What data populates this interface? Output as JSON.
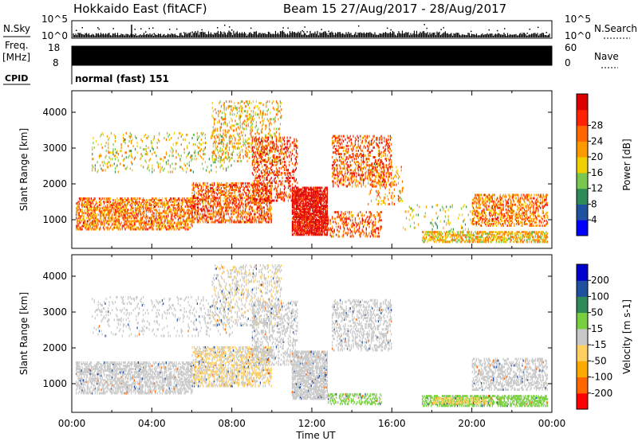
{
  "header": {
    "title": "Hokkaido East (fitACF)",
    "beam_info": "Beam 15  27/Aug/2017 - 28/Aug/2017"
  },
  "left_labels": {
    "nsky": "N.Sky",
    "freq": "Freq.",
    "freq_unit": "[MHz]",
    "cpid": "CPID"
  },
  "right_labels": {
    "nsearch": "N.Search",
    "nave": "Nave"
  },
  "strip_ticks": {
    "noise_left_top": "10^5",
    "noise_left_bottom": "10^0",
    "noise_right_top": "10^5",
    "noise_right_bottom": "10^0",
    "freq_left_top": "18",
    "freq_left_bottom": "8",
    "nave_right_top": "60",
    "nave_right_bottom": "0"
  },
  "cpid_text": "normal (fast) 151",
  "colors": {
    "power": [
      "#0000ff",
      "#2050a0",
      "#2e8b57",
      "#78c850",
      "#f0d000",
      "#ff9900",
      "#ff6600",
      "#ff2200",
      "#dd0000"
    ],
    "velocity": [
      "#ff0000",
      "#ff6600",
      "#ffaa00",
      "#ffd060",
      "#c8c8c8",
      "#78d040",
      "#2e8b57",
      "#2050a0",
      "#0000cc"
    ]
  },
  "chart_data": [
    {
      "type": "heatmap",
      "name": "power",
      "xlabel": "",
      "ylabel": "Slant Range [km]",
      "x_ticks": [
        "00:00",
        "04:00",
        "08:00",
        "12:00",
        "16:00",
        "20:00",
        "00:00"
      ],
      "xlim": [
        0,
        24
      ],
      "ylim": [
        200,
        4600
      ],
      "y_ticks": [
        1000,
        2000,
        3000,
        4000
      ],
      "colorbar": {
        "label": "Power [dB]",
        "ticks": [
          4,
          8,
          12,
          16,
          20,
          24,
          28
        ],
        "range": [
          0,
          32
        ]
      },
      "regions": [
        {
          "t": [
            0.2,
            6.0
          ],
          "r": [
            700,
            1600
          ],
          "value": 22,
          "density": 0.55
        },
        {
          "t": [
            6.0,
            10.0
          ],
          "r": [
            900,
            2000
          ],
          "value": 24,
          "density": 0.5
        },
        {
          "t": [
            1.0,
            8.0
          ],
          "r": [
            2300,
            3400
          ],
          "value": 16,
          "density": 0.12
        },
        {
          "t": [
            7.0,
            10.5
          ],
          "r": [
            2600,
            4300
          ],
          "value": 18,
          "density": 0.22
        },
        {
          "t": [
            9.0,
            11.3
          ],
          "r": [
            1500,
            3300
          ],
          "value": 26,
          "density": 0.3
        },
        {
          "t": [
            11.0,
            12.8
          ],
          "r": [
            550,
            1900
          ],
          "value": 30,
          "density": 0.85
        },
        {
          "t": [
            12.8,
            15.5
          ],
          "r": [
            500,
            1200
          ],
          "value": 24,
          "density": 0.3
        },
        {
          "t": [
            13.0,
            16.0
          ],
          "r": [
            1900,
            3300
          ],
          "value": 24,
          "density": 0.35
        },
        {
          "t": [
            14.8,
            16.6
          ],
          "r": [
            1400,
            2500
          ],
          "value": 20,
          "density": 0.15
        },
        {
          "t": [
            17.5,
            23.8
          ],
          "r": [
            350,
            650
          ],
          "value": 18,
          "density": 0.6
        },
        {
          "t": [
            20.0,
            23.8
          ],
          "r": [
            800,
            1700
          ],
          "value": 22,
          "density": 0.45
        },
        {
          "t": [
            16.5,
            20.0
          ],
          "r": [
            650,
            1400
          ],
          "value": 14,
          "density": 0.06
        }
      ]
    },
    {
      "type": "heatmap",
      "name": "velocity",
      "xlabel": "Time UT",
      "ylabel": "Slant Range [km]",
      "x_ticks": [
        "00:00",
        "04:00",
        "08:00",
        "12:00",
        "16:00",
        "20:00",
        "00:00"
      ],
      "xlim": [
        0,
        24
      ],
      "ylim": [
        200,
        4600
      ],
      "y_ticks": [
        1000,
        2000,
        3000,
        4000
      ],
      "colorbar": {
        "label": "Velocity [m s-1]",
        "ticks": [
          -200,
          -100,
          -50,
          -15,
          15,
          50,
          100,
          200
        ],
        "range": [
          -250,
          250
        ]
      },
      "regions": [
        {
          "t": [
            0.2,
            6.0
          ],
          "r": [
            700,
            1600
          ],
          "value": 0,
          "density": 0.55
        },
        {
          "t": [
            6.0,
            10.0
          ],
          "r": [
            900,
            2000
          ],
          "value": -30,
          "density": 0.5
        },
        {
          "t": [
            1.0,
            8.0
          ],
          "r": [
            2300,
            3400
          ],
          "value": 0,
          "density": 0.12
        },
        {
          "t": [
            7.0,
            10.5
          ],
          "r": [
            2600,
            4300
          ],
          "value": -20,
          "density": 0.22
        },
        {
          "t": [
            9.0,
            11.3
          ],
          "r": [
            1500,
            3300
          ],
          "value": 0,
          "density": 0.3
        },
        {
          "t": [
            11.0,
            12.8
          ],
          "r": [
            550,
            1900
          ],
          "value": 0,
          "density": 0.7
        },
        {
          "t": [
            12.8,
            15.5
          ],
          "r": [
            400,
            700
          ],
          "value": 40,
          "density": 0.45
        },
        {
          "t": [
            13.0,
            16.0
          ],
          "r": [
            1900,
            3300
          ],
          "value": 0,
          "density": 0.35
        },
        {
          "t": [
            17.5,
            23.8
          ],
          "r": [
            350,
            650
          ],
          "value": 45,
          "density": 0.65
        },
        {
          "t": [
            18.0,
            21.0
          ],
          "r": [
            420,
            560
          ],
          "value": -60,
          "density": 0.5
        },
        {
          "t": [
            20.0,
            23.8
          ],
          "r": [
            800,
            1700
          ],
          "value": 0,
          "density": 0.45
        }
      ]
    }
  ]
}
